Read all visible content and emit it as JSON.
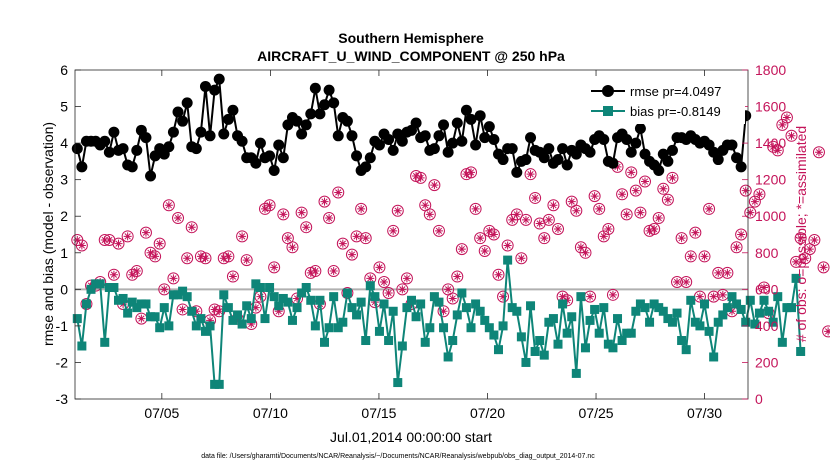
{
  "chart_data": {
    "type": "line",
    "title": [
      "Southern Hemisphere",
      "AIRCRAFT_U_WIND_COMPONENT @ 250 hPa"
    ],
    "xlabel": "Jul.01,2014 00:00:00 start",
    "ylabel": "rmse and bias (model - observation)",
    "ylabel_right": "# of obs: o=possible; *=assimilated",
    "xlim": [
      1,
      32
    ],
    "ylim": [
      -3,
      6
    ],
    "ylim_right": [
      0,
      1800
    ],
    "xticks": [
      5,
      10,
      15,
      20,
      25,
      30
    ],
    "xtick_labels": [
      "07/05",
      "07/10",
      "07/15",
      "07/20",
      "07/25",
      "07/30"
    ],
    "yticks": [
      -3,
      -2,
      -1,
      0,
      1,
      2,
      3,
      4,
      5,
      6
    ],
    "yticks_right": [
      0,
      200,
      400,
      600,
      800,
      1000,
      1200,
      1400,
      1600,
      1800
    ],
    "legend": {
      "position": "top-right",
      "entries": [
        "rmse pr=4.0497",
        "bias pr=-0.8149"
      ]
    },
    "colors": {
      "rmse": "#000000",
      "bias": "#0e8578",
      "obs": "#c4145a",
      "zero": "#b0b0b0"
    },
    "series": [
      {
        "name": "rmse",
        "values": [
          3.85,
          3.35,
          4.05,
          4.05,
          4.05,
          3.95,
          4.05,
          3.75,
          4.3,
          3.8,
          3.85,
          3.4,
          3.35,
          3.8,
          4.35,
          4.15,
          3.1,
          3.65,
          3.85,
          3.7,
          3.9,
          4.3,
          4.85,
          4.6,
          5.1,
          3.9,
          3.85,
          4.3,
          5.55,
          4.2,
          5.45,
          5.75,
          4.25,
          4.65,
          4.9,
          4.2,
          4.05,
          3.6,
          3.6,
          3.45,
          4.0,
          3.6,
          3.65,
          3.25,
          3.95,
          3.6,
          4.5,
          4.7,
          4.6,
          4.25,
          4.5,
          4.8,
          5.5,
          4.8,
          5.05,
          5.45,
          5.1,
          4.2,
          4.7,
          4.6,
          4.2,
          3.65,
          3.25,
          3.35,
          3.6,
          4.05,
          3.95,
          4.25,
          4.1,
          3.8,
          4.25,
          4.05,
          4.3,
          4.35,
          4.55,
          4.15,
          4.2,
          3.8,
          3.85,
          4.2,
          4.5,
          3.75,
          4.0,
          4.55,
          4.05,
          4.9,
          4.65,
          3.95,
          4.75,
          4.15,
          4.45,
          4.1,
          3.7,
          3.55,
          3.85,
          3.85,
          3.2,
          3.5,
          3.55,
          4.15,
          3.8,
          3.75,
          3.6,
          3.85,
          3.45,
          3.55,
          3.85,
          3.4,
          3.8,
          3.7,
          3.95,
          3.85,
          3.75,
          4.1,
          4.2,
          4.1,
          3.5,
          3.45,
          4.15,
          4.25,
          4.1,
          3.75,
          4.0,
          4.4,
          3.7,
          3.5,
          3.4,
          3.25,
          3.7,
          3.5,
          3.8,
          4.15,
          4.15,
          4.1,
          4.2,
          4.1,
          4.0,
          4.05,
          3.95,
          3.75,
          3.55,
          3.8,
          3.95,
          3.95,
          3.6,
          3.35,
          4.75
        ]
      },
      {
        "name": "bias",
        "values": [
          -0.8,
          -1.55,
          -0.4,
          0.0,
          0.15,
          0.15,
          -1.45,
          0.05,
          0.05,
          -0.3,
          -0.25,
          -0.65,
          -0.35,
          -0.5,
          -0.4,
          -0.4,
          -0.75,
          -0.75,
          -1.05,
          -0.5,
          -1.0,
          -0.15,
          -0.15,
          -0.05,
          -0.2,
          -0.6,
          -1.0,
          -0.8,
          -1.15,
          -1.0,
          -2.6,
          -2.6,
          -0.15,
          -0.5,
          -0.85,
          -0.7,
          -0.95,
          -0.45,
          -0.8,
          0.15,
          0.05,
          -0.8,
          0.05,
          -0.2,
          -0.45,
          -0.25,
          -0.35,
          -0.85,
          -0.5,
          -0.1,
          0.05,
          -0.3,
          -1.0,
          -0.3,
          -1.45,
          -1.05,
          -0.2,
          -1.05,
          -0.9,
          -0.1,
          -0.5,
          -0.7,
          -0.35,
          -1.4,
          0.1,
          -0.2,
          -1.15,
          -0.4,
          -1.4,
          -0.6,
          -2.55,
          -1.55,
          -0.5,
          -0.3,
          -0.75,
          -0.4,
          -1.45,
          -1.05,
          -0.2,
          -0.35,
          -1.05,
          -1.85,
          -1.4,
          -0.7,
          -0.1,
          -0.5,
          -1.05,
          -0.4,
          -0.6,
          -0.85,
          -1.05,
          -1.25,
          -1.65,
          -1.0,
          0.8,
          -0.5,
          -0.6,
          -1.3,
          -2.0,
          -0.45,
          -1.7,
          -1.4,
          -1.8,
          -0.9,
          -0.8,
          -1.5,
          -0.4,
          -1.2,
          -0.75,
          -2.3,
          -0.2,
          -1.6,
          -0.85,
          -0.55,
          -1.2,
          -0.5,
          -1.5,
          -1.6,
          -0.8,
          -1.4,
          -1.2,
          -1.2,
          -0.6,
          -0.4,
          -0.5,
          -0.9,
          -0.4,
          -0.5,
          -0.6,
          -0.8,
          -0.9,
          -0.65,
          -1.4,
          -1.65,
          -0.3,
          -0.9,
          -1.0,
          -0.4,
          -1.15,
          -1.85,
          -0.9,
          -0.7,
          -0.5,
          -0.2,
          -0.4,
          -0.55,
          -0.9,
          -0.3,
          -0.95,
          -0.65,
          -0.3,
          -0.6,
          -0.9,
          -0.2,
          -1.45,
          -0.5,
          -0.5,
          0.3,
          -1.7
        ]
      },
      {
        "name": "obs_count",
        "values": [
          870,
          840,
          520,
          620,
          620,
          640,
          870,
          870,
          680,
          850,
          520,
          890,
          680,
          700,
          440,
          910,
          800,
          780,
          850,
          600,
          1060,
          660,
          990,
          490,
          770,
          940,
          480,
          780,
          770,
          430,
          490,
          480,
          770,
          780,
          670,
          440,
          890,
          760,
          410,
          500,
          560,
          1040,
          1060,
          720,
          480,
          1010,
          880,
          830,
          550,
          1020,
          940,
          690,
          700,
          520,
          1080,
          990,
          700,
          1130,
          850,
          580,
          790,
          890,
          1040,
          880,
          660,
          530,
          720,
          640,
          580,
          920,
          1030,
          600,
          660,
          520,
          1220,
          1210,
          1060,
          1010,
          1170,
          920,
          480,
          600,
          550,
          670,
          820,
          1230,
          1240,
          1040,
          880,
          810,
          920,
          900,
          680,
          560,
          840,
          980,
          1010,
          770,
          980,
          1230,
          1100,
          960,
          880,
          980,
          1060,
          930,
          560,
          540,
          1080,
          1030,
          830,
          800,
          560,
          1110,
          1040,
          890,
          930,
          570,
          1270,
          1120,
          1010,
          1240,
          1140,
          1020,
          1190,
          920,
          930,
          990,
          1150,
          1090,
          1210,
          640,
          880,
          640,
          780,
          910,
          560,
          780,
          1040,
          560,
          690,
          570,
          690,
          480,
          830,
          900,
          1140,
          1020,
          1080,
          1120,
          610,
          470,
          1380,
          1360,
          1500,
          1540,
          1440,
          750,
          880,
          770,
          820,
          870,
          1350,
          720,
          370
        ]
      }
    ]
  },
  "footer": "data file: /Users/gharamti/Documents/NCAR/Reanalysis/~/Documents/NCAR/Reanalysis/webpub/obs_diag_output_2014-07.nc"
}
